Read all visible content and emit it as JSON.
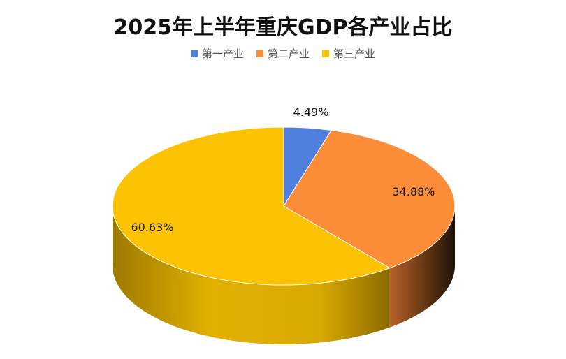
{
  "chart_data": {
    "type": "pie",
    "title": "2025年上半年重庆GDP各产业占比",
    "legend_position": "top",
    "categories": [
      "第一产业",
      "第二产业",
      "第三产业"
    ],
    "values": [
      4.49,
      34.88,
      60.63
    ],
    "data_labels": [
      "4.49%",
      "34.88%",
      "60.63%"
    ],
    "colors": [
      "#4F7FDC",
      "#FB8C38",
      "#FBC304"
    ]
  }
}
